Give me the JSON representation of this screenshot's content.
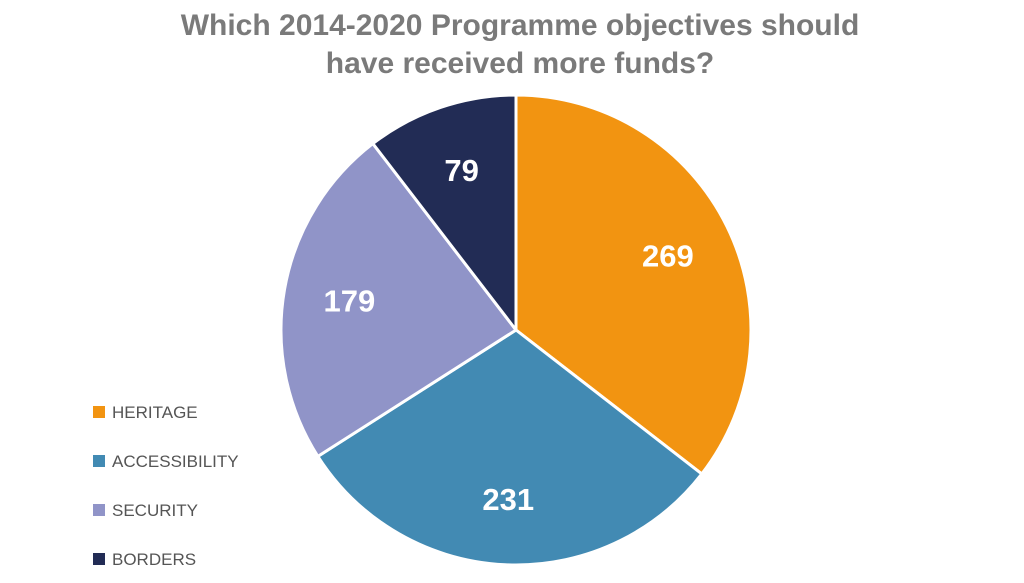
{
  "chart_data": {
    "type": "pie",
    "title": "Which 2014-2020 Programme objectives should have received more funds?",
    "title_lines": [
      "Which 2014-2020 Programme objectives should",
      "have received more funds?"
    ],
    "categories": [
      "HERITAGE",
      "ACCESSIBILITY",
      "SECURITY",
      "BORDERS"
    ],
    "values": [
      269,
      231,
      179,
      79
    ],
    "colors": [
      "#f29411",
      "#428ab3",
      "#9094c8",
      "#222c55"
    ],
    "start": "12 o'clock",
    "direction": "clockwise",
    "data_labels": "inside, white",
    "legend_position": "bottom-left"
  }
}
